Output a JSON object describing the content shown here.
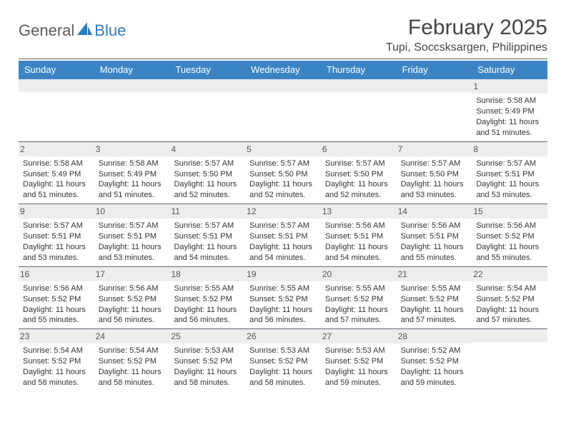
{
  "brand": {
    "part1": "General",
    "part2": "Blue"
  },
  "title": "February 2025",
  "location": "Tupi, Soccsksargen, Philippines",
  "colors": {
    "header_bg": "#3b84c4",
    "header_text": "#ffffff",
    "daynum_bg": "#ededed",
    "divider": "#5f6c78",
    "body_text": "#333333",
    "brand_gray": "#5c5c5c",
    "brand_blue": "#2f7bbf"
  },
  "day_headers": [
    "Sunday",
    "Monday",
    "Tuesday",
    "Wednesday",
    "Thursday",
    "Friday",
    "Saturday"
  ],
  "weeks": [
    [
      {
        "n": "",
        "sr": "",
        "ss": "",
        "dl": ""
      },
      {
        "n": "",
        "sr": "",
        "ss": "",
        "dl": ""
      },
      {
        "n": "",
        "sr": "",
        "ss": "",
        "dl": ""
      },
      {
        "n": "",
        "sr": "",
        "ss": "",
        "dl": ""
      },
      {
        "n": "",
        "sr": "",
        "ss": "",
        "dl": ""
      },
      {
        "n": "",
        "sr": "",
        "ss": "",
        "dl": ""
      },
      {
        "n": "1",
        "sr": "Sunrise: 5:58 AM",
        "ss": "Sunset: 5:49 PM",
        "dl": "Daylight: 11 hours and 51 minutes."
      }
    ],
    [
      {
        "n": "2",
        "sr": "Sunrise: 5:58 AM",
        "ss": "Sunset: 5:49 PM",
        "dl": "Daylight: 11 hours and 51 minutes."
      },
      {
        "n": "3",
        "sr": "Sunrise: 5:58 AM",
        "ss": "Sunset: 5:49 PM",
        "dl": "Daylight: 11 hours and 51 minutes."
      },
      {
        "n": "4",
        "sr": "Sunrise: 5:57 AM",
        "ss": "Sunset: 5:50 PM",
        "dl": "Daylight: 11 hours and 52 minutes."
      },
      {
        "n": "5",
        "sr": "Sunrise: 5:57 AM",
        "ss": "Sunset: 5:50 PM",
        "dl": "Daylight: 11 hours and 52 minutes."
      },
      {
        "n": "6",
        "sr": "Sunrise: 5:57 AM",
        "ss": "Sunset: 5:50 PM",
        "dl": "Daylight: 11 hours and 52 minutes."
      },
      {
        "n": "7",
        "sr": "Sunrise: 5:57 AM",
        "ss": "Sunset: 5:50 PM",
        "dl": "Daylight: 11 hours and 53 minutes."
      },
      {
        "n": "8",
        "sr": "Sunrise: 5:57 AM",
        "ss": "Sunset: 5:51 PM",
        "dl": "Daylight: 11 hours and 53 minutes."
      }
    ],
    [
      {
        "n": "9",
        "sr": "Sunrise: 5:57 AM",
        "ss": "Sunset: 5:51 PM",
        "dl": "Daylight: 11 hours and 53 minutes."
      },
      {
        "n": "10",
        "sr": "Sunrise: 5:57 AM",
        "ss": "Sunset: 5:51 PM",
        "dl": "Daylight: 11 hours and 53 minutes."
      },
      {
        "n": "11",
        "sr": "Sunrise: 5:57 AM",
        "ss": "Sunset: 5:51 PM",
        "dl": "Daylight: 11 hours and 54 minutes."
      },
      {
        "n": "12",
        "sr": "Sunrise: 5:57 AM",
        "ss": "Sunset: 5:51 PM",
        "dl": "Daylight: 11 hours and 54 minutes."
      },
      {
        "n": "13",
        "sr": "Sunrise: 5:56 AM",
        "ss": "Sunset: 5:51 PM",
        "dl": "Daylight: 11 hours and 54 minutes."
      },
      {
        "n": "14",
        "sr": "Sunrise: 5:56 AM",
        "ss": "Sunset: 5:51 PM",
        "dl": "Daylight: 11 hours and 55 minutes."
      },
      {
        "n": "15",
        "sr": "Sunrise: 5:56 AM",
        "ss": "Sunset: 5:52 PM",
        "dl": "Daylight: 11 hours and 55 minutes."
      }
    ],
    [
      {
        "n": "16",
        "sr": "Sunrise: 5:56 AM",
        "ss": "Sunset: 5:52 PM",
        "dl": "Daylight: 11 hours and 55 minutes."
      },
      {
        "n": "17",
        "sr": "Sunrise: 5:56 AM",
        "ss": "Sunset: 5:52 PM",
        "dl": "Daylight: 11 hours and 56 minutes."
      },
      {
        "n": "18",
        "sr": "Sunrise: 5:55 AM",
        "ss": "Sunset: 5:52 PM",
        "dl": "Daylight: 11 hours and 56 minutes."
      },
      {
        "n": "19",
        "sr": "Sunrise: 5:55 AM",
        "ss": "Sunset: 5:52 PM",
        "dl": "Daylight: 11 hours and 56 minutes."
      },
      {
        "n": "20",
        "sr": "Sunrise: 5:55 AM",
        "ss": "Sunset: 5:52 PM",
        "dl": "Daylight: 11 hours and 57 minutes."
      },
      {
        "n": "21",
        "sr": "Sunrise: 5:55 AM",
        "ss": "Sunset: 5:52 PM",
        "dl": "Daylight: 11 hours and 57 minutes."
      },
      {
        "n": "22",
        "sr": "Sunrise: 5:54 AM",
        "ss": "Sunset: 5:52 PM",
        "dl": "Daylight: 11 hours and 57 minutes."
      }
    ],
    [
      {
        "n": "23",
        "sr": "Sunrise: 5:54 AM",
        "ss": "Sunset: 5:52 PM",
        "dl": "Daylight: 11 hours and 58 minutes."
      },
      {
        "n": "24",
        "sr": "Sunrise: 5:54 AM",
        "ss": "Sunset: 5:52 PM",
        "dl": "Daylight: 11 hours and 58 minutes."
      },
      {
        "n": "25",
        "sr": "Sunrise: 5:53 AM",
        "ss": "Sunset: 5:52 PM",
        "dl": "Daylight: 11 hours and 58 minutes."
      },
      {
        "n": "26",
        "sr": "Sunrise: 5:53 AM",
        "ss": "Sunset: 5:52 PM",
        "dl": "Daylight: 11 hours and 58 minutes."
      },
      {
        "n": "27",
        "sr": "Sunrise: 5:53 AM",
        "ss": "Sunset: 5:52 PM",
        "dl": "Daylight: 11 hours and 59 minutes."
      },
      {
        "n": "28",
        "sr": "Sunrise: 5:52 AM",
        "ss": "Sunset: 5:52 PM",
        "dl": "Daylight: 11 hours and 59 minutes."
      },
      {
        "n": "",
        "sr": "",
        "ss": "",
        "dl": ""
      }
    ]
  ]
}
